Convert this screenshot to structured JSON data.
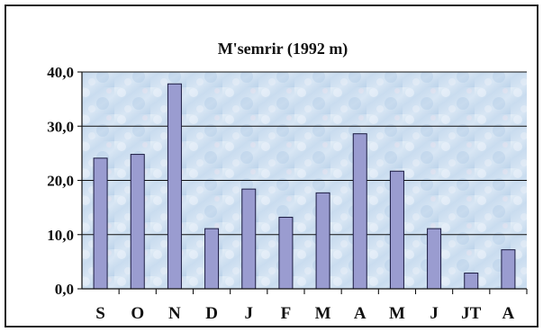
{
  "chart_data": {
    "type": "bar",
    "title": "M'semrir (1992 m)",
    "xlabel": "",
    "ylabel": "",
    "categories": [
      "S",
      "O",
      "N",
      "D",
      "J",
      "F",
      "M",
      "A",
      "M",
      "J",
      "JT",
      "A"
    ],
    "values": [
      24.1,
      24.8,
      37.8,
      11.1,
      18.4,
      13.2,
      17.7,
      28.6,
      21.7,
      11.1,
      2.9,
      7.2
    ],
    "ylim": [
      0,
      40
    ],
    "yticks": [
      "0,0",
      "10,0",
      "20,0",
      "30,0",
      "40,0"
    ],
    "grid": true,
    "legend": "none",
    "colors": {
      "bar_fill": "#9a9cd0",
      "bar_stroke": "#1a1a40",
      "plot_bg_light": "#dce9f5",
      "plot_bg_dark": "#b8d1ea",
      "grid": "#111111",
      "frame": "#222222"
    }
  }
}
